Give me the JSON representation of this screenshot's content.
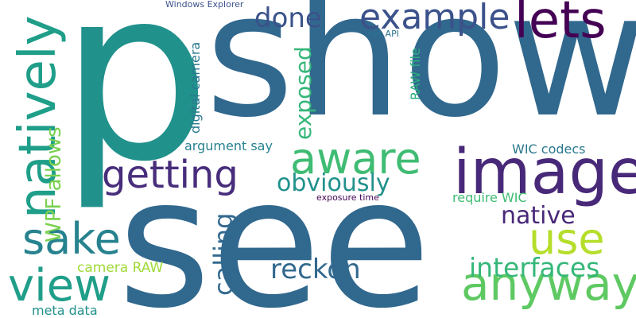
{
  "words": {
    "p": {
      "text": "p",
      "color": "#21918c"
    },
    "show": {
      "text": "show",
      "color": "#31688e"
    },
    "see": {
      "text": "see",
      "color": "#31688e"
    },
    "image": {
      "text": "image",
      "color": "#482878"
    },
    "anyway": {
      "text": "anyway",
      "color": "#5ec962"
    },
    "aware": {
      "text": "aware",
      "color": "#3fbc73"
    },
    "use": {
      "text": "use",
      "color": "#b5de2b"
    },
    "view": {
      "text": "view",
      "color": "#1f9e89"
    },
    "getting": {
      "text": "getting",
      "color": "#472d7b"
    },
    "sake": {
      "text": "sake",
      "color": "#26828e"
    },
    "natively": {
      "text": "natively",
      "color": "#1f9e89"
    },
    "example": {
      "text": "example",
      "color": "#3b528b"
    },
    "lets": {
      "text": "lets",
      "color": "#440154"
    },
    "done": {
      "text": "done",
      "color": "#3b528b"
    },
    "native": {
      "text": "native",
      "color": "#482878"
    },
    "reckon": {
      "text": "reckon",
      "color": "#31688e"
    },
    "interfaces": {
      "text": "interfaces",
      "color": "#35b779"
    },
    "obviously": {
      "text": "obviously",
      "color": "#21918c"
    },
    "exposed": {
      "text": "exposed",
      "color": "#35b779"
    },
    "calling": {
      "text": "calling",
      "color": "#31688e"
    },
    "wpf_allows": {
      "text": "WPF allows",
      "color": "#7ad151"
    },
    "wic_codecs": {
      "text": "WIC codecs",
      "color": "#2a788e"
    },
    "argument_say": {
      "text": "argument say",
      "color": "#26828e"
    },
    "require_wic": {
      "text": "require WIC",
      "color": "#3fbc73"
    },
    "camera_raw": {
      "text": "camera RAW",
      "color": "#a0da39"
    },
    "meta_data": {
      "text": "meta data",
      "color": "#21918c"
    },
    "digital_camera": {
      "text": "digital camera",
      "color": "#2a788e"
    },
    "raw_file": {
      "text": "RAW file",
      "color": "#29af7f"
    },
    "windows_explorer": {
      "text": "Windows Explorer",
      "color": "#3b528b"
    },
    "net_api": {
      "text": "net API",
      "color": "#2c728e"
    },
    "exposure_time": {
      "text": "exposure time",
      "color": "#440154"
    }
  }
}
